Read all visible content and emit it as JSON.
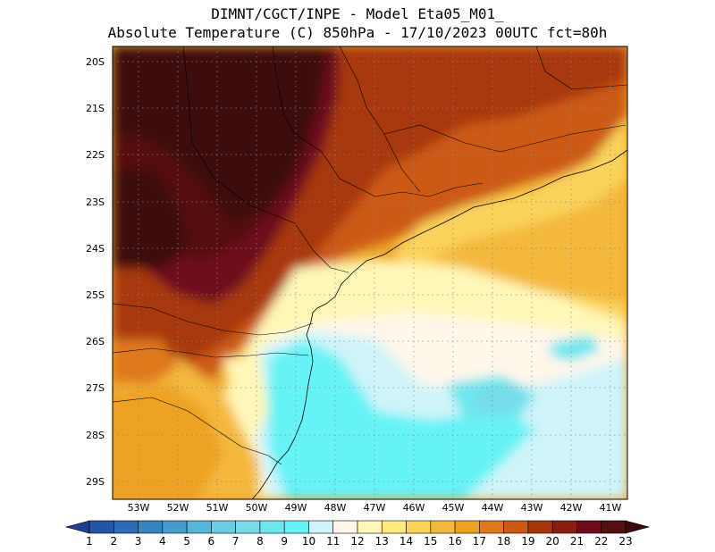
{
  "title": {
    "line1": "DIMNT/CGCT/INPE -  Model Eta05_M01_",
    "line2": "Absolute Temperature (C) 850hPa -  17/10/2023 00UTC fct=80h"
  },
  "map": {
    "lat_range": [
      "29.5S",
      "19.8S"
    ],
    "lon_range": [
      "53.6W",
      "40.6W"
    ],
    "lat_labels": [
      "20S",
      "21S",
      "22S",
      "23S",
      "24S",
      "25S",
      "26S",
      "27S",
      "28S",
      "29S"
    ],
    "lon_labels": [
      "53W",
      "52W",
      "51W",
      "50W",
      "49W",
      "48W",
      "47W",
      "46W",
      "45W",
      "44W",
      "43W",
      "42W",
      "41W"
    ],
    "gridlines": "dotted"
  },
  "colorbar": {
    "labels": [
      "1",
      "2",
      "3",
      "4",
      "5",
      "6",
      "7",
      "8",
      "9",
      "10",
      "11",
      "12",
      "13",
      "14",
      "15",
      "16",
      "17",
      "18",
      "19",
      "20",
      "21",
      "22",
      "23"
    ],
    "colors": [
      "#1d3f8f",
      "#2456a5",
      "#2c6cb7",
      "#3884c3",
      "#459ccc",
      "#56b6d8",
      "#6acde4",
      "#77dbe8",
      "#6ee6ef",
      "#66f3f6",
      "#cff4fa",
      "#fff7ea",
      "#fff7b7",
      "#ffe87c",
      "#fad35a",
      "#f4b83c",
      "#eea222",
      "#e0781c",
      "#cc5a14",
      "#a8380c",
      "#8a1c10",
      "#6e0c1c",
      "#541010",
      "#3c0a0e"
    ]
  }
}
